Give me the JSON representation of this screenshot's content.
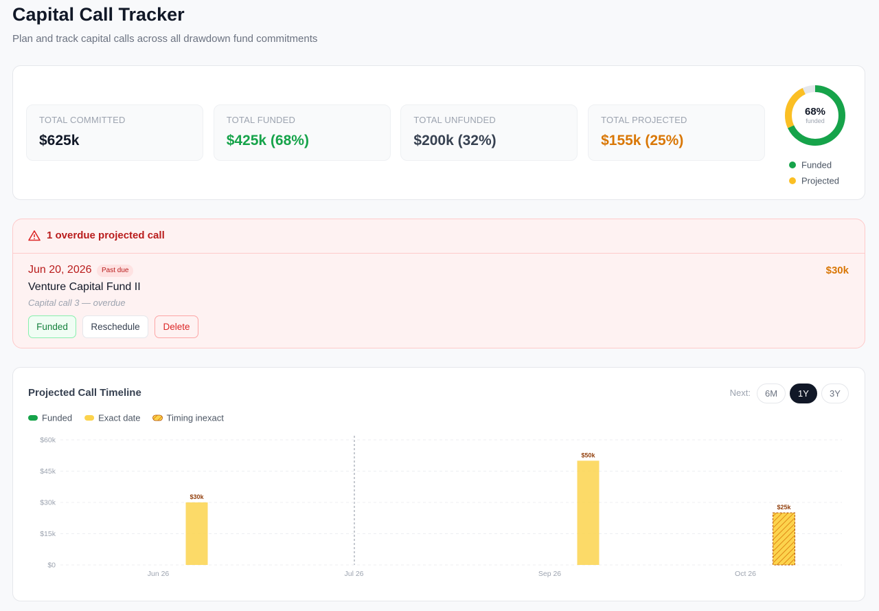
{
  "header": {
    "title": "Capital Call Tracker",
    "subtitle": "Plan and track capital calls across all drawdown fund commitments"
  },
  "stats": [
    {
      "label": "TOTAL COMMITTED",
      "value": "$625k",
      "color": "#111827"
    },
    {
      "label": "TOTAL FUNDED",
      "value": "$425k (68%)",
      "color": "#16a34a"
    },
    {
      "label": "TOTAL UNFUNDED",
      "value": "$200k (32%)",
      "color": "#374151"
    },
    {
      "label": "TOTAL PROJECTED",
      "value": "$155k (25%)",
      "color": "#d97706"
    }
  ],
  "donut": {
    "center_label": "68%",
    "center_sub": "funded",
    "segments": [
      {
        "name": "Funded",
        "value": 68,
        "color": "#16a34a"
      },
      {
        "name": "Projected",
        "value": 25,
        "color": "#fbbf24"
      }
    ]
  },
  "alert": {
    "title": "1 overdue projected call",
    "item": {
      "date": "Jun 20, 2026",
      "badge": "Past due",
      "fund": "Venture Capital Fund II",
      "note": "Capital call 3 — overdue",
      "amount": "$30k",
      "actions": [
        "Funded",
        "Reschedule",
        "Delete"
      ]
    }
  },
  "timeline": {
    "title": "Projected Call Timeline",
    "range_label": "Next:",
    "range_options": [
      "6M",
      "1Y",
      "3Y"
    ],
    "range_active": "1Y",
    "chart_data": {
      "type": "bar",
      "categories": [
        "Jun 26",
        "Jul 26",
        "Sep 26",
        "Oct 26"
      ],
      "series": [
        {
          "name": "Funded",
          "color": "#16a34a",
          "values": [
            null,
            null,
            null,
            null
          ]
        },
        {
          "name": "Exact date",
          "color": "#fcd34d",
          "values": [
            30000,
            null,
            50000,
            null
          ],
          "value_labels": [
            "$30k",
            null,
            "$50k",
            null
          ]
        },
        {
          "name": "Timing inexact",
          "color": "#fbbf24",
          "pattern": "hatch",
          "values": [
            null,
            null,
            null,
            25000
          ],
          "value_labels": [
            null,
            null,
            null,
            "$25k"
          ]
        }
      ],
      "ylim": [
        0,
        60000
      ],
      "yticks": [
        {
          "value": 0,
          "label": "$0"
        },
        {
          "value": 15000,
          "label": "$15k"
        },
        {
          "value": 30000,
          "label": "$30k"
        },
        {
          "value": 45000,
          "label": "$45k"
        },
        {
          "value": 60000,
          "label": "$60k"
        }
      ],
      "grid": true
    }
  }
}
